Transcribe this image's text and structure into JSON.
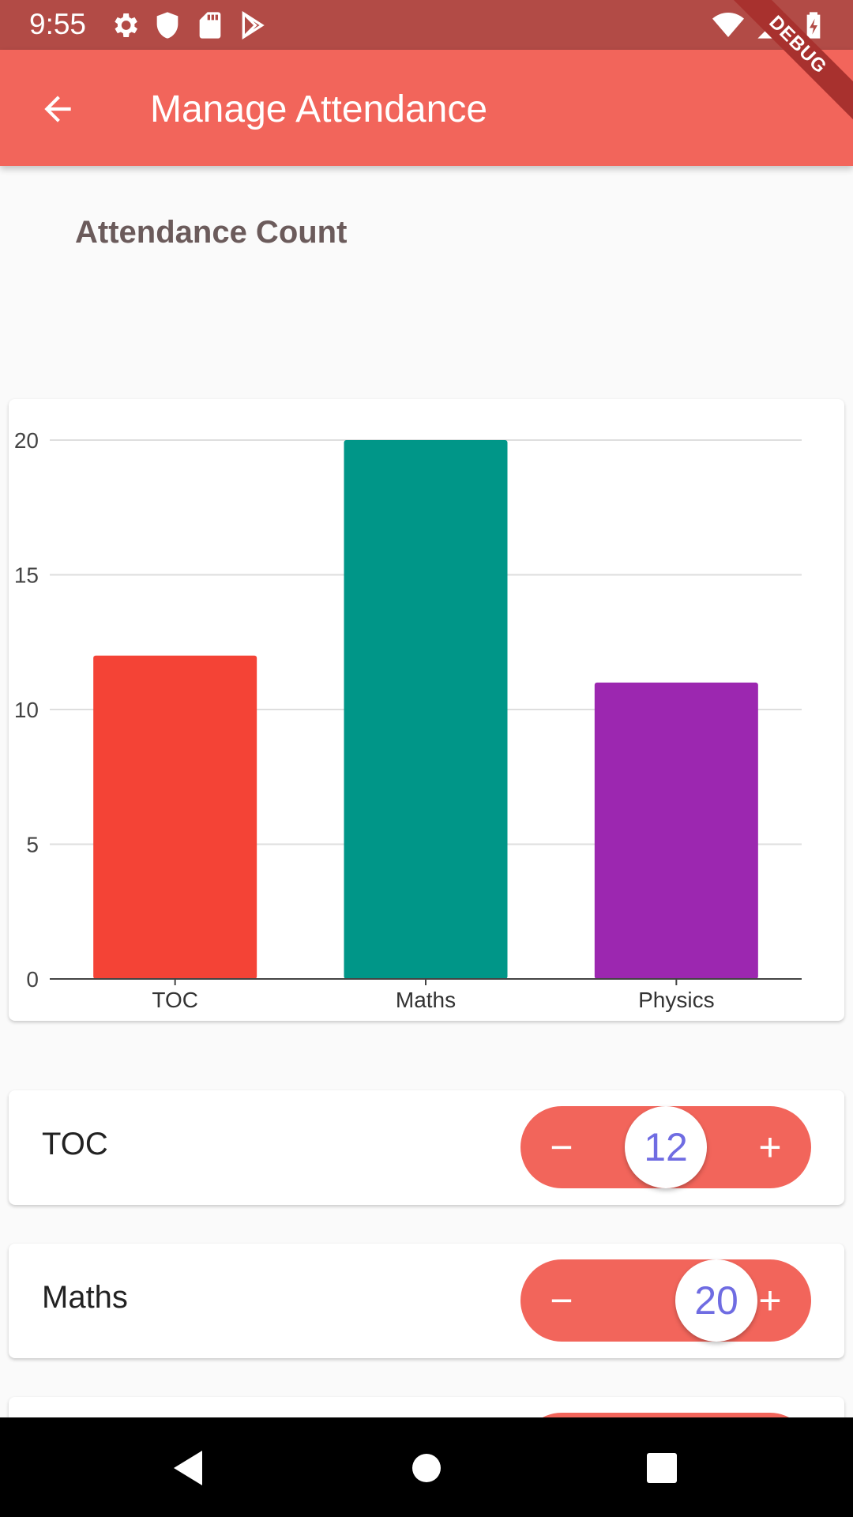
{
  "status_bar": {
    "time": "9:55",
    "left_icons": [
      "settings-icon",
      "shield-icon",
      "sd-card-icon",
      "play-store-icon"
    ],
    "right_icons": [
      "wifi-icon",
      "cell-signal-icon",
      "battery-charging-icon"
    ]
  },
  "debug_banner": "DEBUG",
  "app_bar": {
    "title": "Manage Attendance",
    "back_icon": "arrow-back-icon",
    "color": "#f2655b"
  },
  "chart_title": "Attendance Count",
  "chart_data": {
    "type": "bar",
    "categories": [
      "TOC",
      "Maths",
      "Physics"
    ],
    "values": [
      12,
      20,
      11
    ],
    "colors": [
      "#f44336",
      "#009688",
      "#9c27b0"
    ],
    "ylim": [
      0,
      20
    ],
    "yticks": [
      0,
      5,
      10,
      15,
      20
    ],
    "grid": true,
    "xlabel": "",
    "ylabel": ""
  },
  "subjects": [
    {
      "label": "TOC",
      "value": 12,
      "minus": "−",
      "plus": "+"
    },
    {
      "label": "Maths",
      "value": 20,
      "minus": "−",
      "plus": "+"
    }
  ],
  "nav_bar": {
    "icons": [
      "nav-back-icon",
      "nav-home-icon",
      "nav-recent-icon"
    ]
  }
}
